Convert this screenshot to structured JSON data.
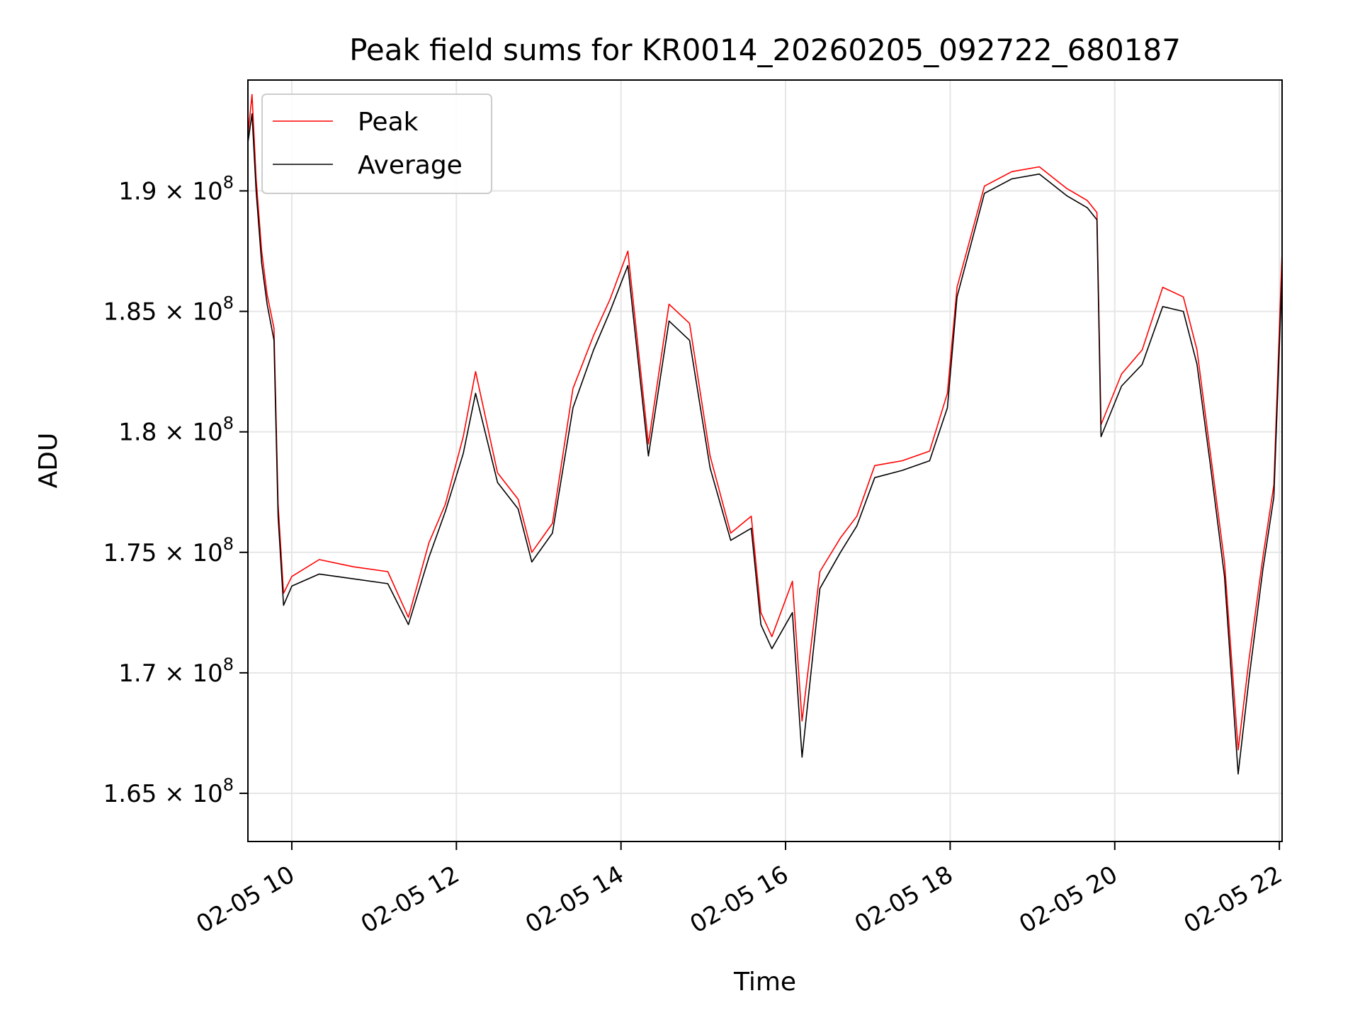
{
  "chart_data": {
    "type": "line",
    "title": "Peak field sums for KR0014_20260205_092722_680187",
    "xlabel": "Time",
    "ylabel": "ADU",
    "x_unit": "datetime",
    "xlim": [
      "2026-02-05 09:28",
      "2026-02-05 22:02"
    ],
    "ylim": [
      163000000,
      194600000
    ],
    "xtick_labels": [
      "02-05 10",
      "02-05 12",
      "02-05 14",
      "02-05 16",
      "02-05 18",
      "02-05 20",
      "02-05 22"
    ],
    "xtick_values": [
      "2026-02-05 10:00",
      "2026-02-05 12:00",
      "2026-02-05 14:00",
      "2026-02-05 16:00",
      "2026-02-05 18:00",
      "2026-02-05 20:00",
      "2026-02-05 22:00"
    ],
    "ytick_values": [
      165000000,
      170000000,
      175000000,
      180000000,
      185000000,
      190000000
    ],
    "ytick_labels": [
      {
        "mantissa": "1.65",
        "exp": "8"
      },
      {
        "mantissa": "1.7",
        "exp": "8"
      },
      {
        "mantissa": "1.75",
        "exp": "8"
      },
      {
        "mantissa": "1.8",
        "exp": "8"
      },
      {
        "mantissa": "1.85",
        "exp": "8"
      },
      {
        "mantissa": "1.9",
        "exp": "8"
      }
    ],
    "grid": true,
    "legend_position": "top-left",
    "colors": {
      "Peak": "#ff0000",
      "Average": "#000000"
    },
    "series": [
      {
        "name": "Peak",
        "x": [
          "2026-02-05 09:28",
          "2026-02-05 09:31",
          "2026-02-05 09:34",
          "2026-02-05 09:38",
          "2026-02-05 09:42",
          "2026-02-05 09:47",
          "2026-02-05 09:50",
          "2026-02-05 09:54",
          "2026-02-05 10:00",
          "2026-02-05 10:20",
          "2026-02-05 10:45",
          "2026-02-05 11:10",
          "2026-02-05 11:25",
          "2026-02-05 11:40",
          "2026-02-05 11:52",
          "2026-02-05 12:05",
          "2026-02-05 12:14",
          "2026-02-05 12:30",
          "2026-02-05 12:45",
          "2026-02-05 12:55",
          "2026-02-05 13:10",
          "2026-02-05 13:25",
          "2026-02-05 13:40",
          "2026-02-05 13:52",
          "2026-02-05 14:05",
          "2026-02-05 14:20",
          "2026-02-05 14:35",
          "2026-02-05 14:50",
          "2026-02-05 15:05",
          "2026-02-05 15:20",
          "2026-02-05 15:35",
          "2026-02-05 15:42",
          "2026-02-05 15:50",
          "2026-02-05 16:05",
          "2026-02-05 16:12",
          "2026-02-05 16:25",
          "2026-02-05 16:40",
          "2026-02-05 16:52",
          "2026-02-05 17:05",
          "2026-02-05 17:25",
          "2026-02-05 17:45",
          "2026-02-05 17:58",
          "2026-02-05 18:05",
          "2026-02-05 18:25",
          "2026-02-05 18:45",
          "2026-02-05 19:05",
          "2026-02-05 19:25",
          "2026-02-05 19:40",
          "2026-02-05 19:47",
          "2026-02-05 19:50",
          "2026-02-05 20:05",
          "2026-02-05 20:20",
          "2026-02-05 20:35",
          "2026-02-05 20:50",
          "2026-02-05 21:00",
          "2026-02-05 21:10",
          "2026-02-05 21:20",
          "2026-02-05 21:30",
          "2026-02-05 21:38",
          "2026-02-05 21:48",
          "2026-02-05 21:56",
          "2026-02-05 22:02"
        ],
        "values": [
          192300000,
          194000000,
          190500000,
          187500000,
          185700000,
          184300000,
          177000000,
          173300000,
          174000000,
          174700000,
          174400000,
          174200000,
          172300000,
          175400000,
          177000000,
          179800000,
          182500000,
          178300000,
          177200000,
          175000000,
          176200000,
          181800000,
          184000000,
          185500000,
          187500000,
          179500000,
          185300000,
          184500000,
          179000000,
          175800000,
          176500000,
          172500000,
          171500000,
          173800000,
          168000000,
          174200000,
          175600000,
          176500000,
          178600000,
          178800000,
          179200000,
          181600000,
          186000000,
          190200000,
          190800000,
          191000000,
          190100000,
          189600000,
          189100000,
          180300000,
          182400000,
          183400000,
          186000000,
          185600000,
          183400000,
          179000000,
          174600000,
          166800000,
          170600000,
          174800000,
          177800000,
          187500000
        ]
      },
      {
        "name": "Average",
        "x": [
          "2026-02-05 09:28",
          "2026-02-05 09:31",
          "2026-02-05 09:34",
          "2026-02-05 09:38",
          "2026-02-05 09:42",
          "2026-02-05 09:47",
          "2026-02-05 09:50",
          "2026-02-05 09:54",
          "2026-02-05 10:00",
          "2026-02-05 10:20",
          "2026-02-05 10:45",
          "2026-02-05 11:10",
          "2026-02-05 11:25",
          "2026-02-05 11:40",
          "2026-02-05 11:52",
          "2026-02-05 12:05",
          "2026-02-05 12:14",
          "2026-02-05 12:30",
          "2026-02-05 12:45",
          "2026-02-05 12:55",
          "2026-02-05 13:10",
          "2026-02-05 13:25",
          "2026-02-05 13:40",
          "2026-02-05 13:52",
          "2026-02-05 14:05",
          "2026-02-05 14:20",
          "2026-02-05 14:35",
          "2026-02-05 14:50",
          "2026-02-05 15:05",
          "2026-02-05 15:20",
          "2026-02-05 15:35",
          "2026-02-05 15:42",
          "2026-02-05 15:50",
          "2026-02-05 16:05",
          "2026-02-05 16:12",
          "2026-02-05 16:25",
          "2026-02-05 16:40",
          "2026-02-05 16:52",
          "2026-02-05 17:05",
          "2026-02-05 17:25",
          "2026-02-05 17:45",
          "2026-02-05 17:58",
          "2026-02-05 18:05",
          "2026-02-05 18:25",
          "2026-02-05 18:45",
          "2026-02-05 19:05",
          "2026-02-05 19:25",
          "2026-02-05 19:40",
          "2026-02-05 19:47",
          "2026-02-05 19:50",
          "2026-02-05 20:05",
          "2026-02-05 20:20",
          "2026-02-05 20:35",
          "2026-02-05 20:50",
          "2026-02-05 21:00",
          "2026-02-05 21:10",
          "2026-02-05 21:20",
          "2026-02-05 21:30",
          "2026-02-05 21:38",
          "2026-02-05 21:48",
          "2026-02-05 21:56",
          "2026-02-05 22:02"
        ],
        "values": [
          192000000,
          193200000,
          190000000,
          187000000,
          185300000,
          183800000,
          176500000,
          172800000,
          173600000,
          174100000,
          173900000,
          173700000,
          172000000,
          174800000,
          176700000,
          179100000,
          181600000,
          177900000,
          176800000,
          174600000,
          175800000,
          181000000,
          183400000,
          185000000,
          186900000,
          179000000,
          184600000,
          183800000,
          178500000,
          175500000,
          176000000,
          172000000,
          171000000,
          172500000,
          166500000,
          173500000,
          175000000,
          176100000,
          178100000,
          178400000,
          178800000,
          181000000,
          185600000,
          189900000,
          190500000,
          190700000,
          189800000,
          189300000,
          188800000,
          179800000,
          181900000,
          182800000,
          185200000,
          185000000,
          182800000,
          178500000,
          174000000,
          165800000,
          169800000,
          174300000,
          177300000,
          186600000
        ]
      }
    ]
  }
}
